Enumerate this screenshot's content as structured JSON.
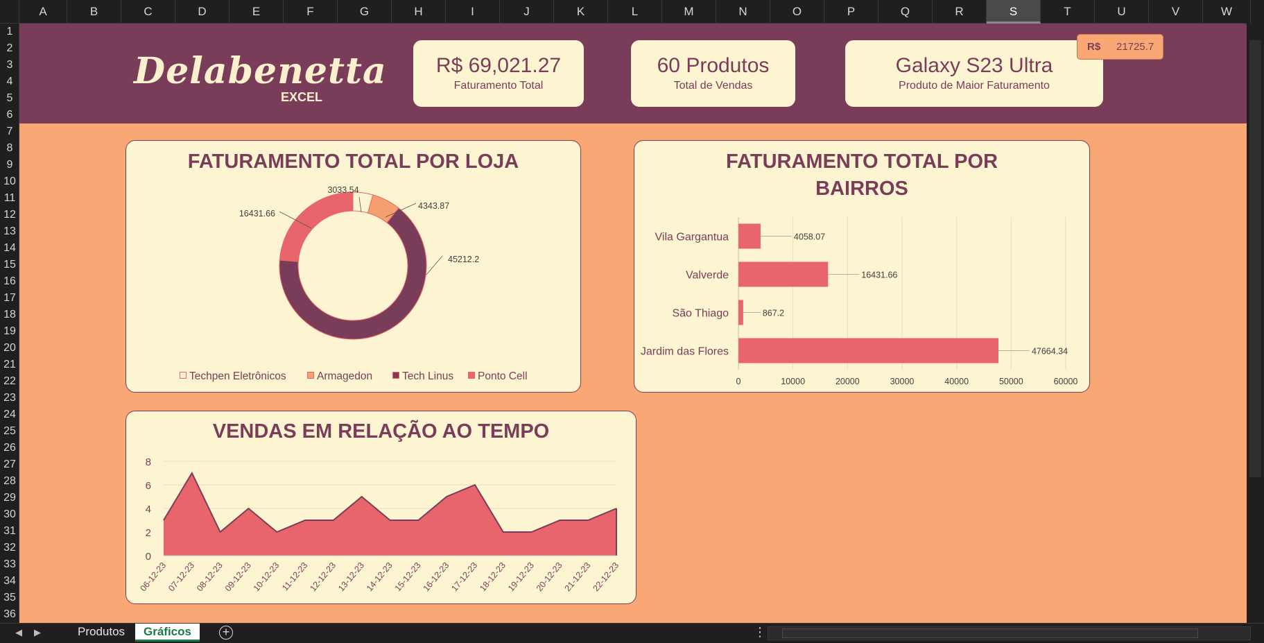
{
  "columns": [
    "A",
    "B",
    "C",
    "D",
    "E",
    "F",
    "G",
    "H",
    "I",
    "J",
    "K",
    "L",
    "M",
    "N",
    "O",
    "P",
    "Q",
    "R",
    "S",
    "T",
    "U",
    "V",
    "W"
  ],
  "selected_column": "S",
  "rows": [
    "1",
    "2",
    "3",
    "4",
    "5",
    "6",
    "7",
    "8",
    "9",
    "10",
    "11",
    "12",
    "13",
    "14",
    "15",
    "16",
    "17",
    "18",
    "19",
    "20",
    "21",
    "22",
    "23",
    "24",
    "25",
    "26",
    "27",
    "28",
    "29",
    "30",
    "31",
    "32",
    "33",
    "34",
    "35",
    "36"
  ],
  "logo": {
    "title": "Delabenetta",
    "subtitle": "EXCEL"
  },
  "kpis": [
    {
      "value": "R$ 69,021.27",
      "label": "Faturamento Total"
    },
    {
      "value": "60 Produtos",
      "label": "Total de Vendas"
    },
    {
      "value": "Galaxy S23 Ultra",
      "label": "Produto de Maior Faturamento"
    }
  ],
  "top_value": {
    "label": "R$",
    "value": "21725.7"
  },
  "colors": {
    "banner": "#7a3d59",
    "background": "#f9a775",
    "card": "#fdf4d1",
    "accent": "#e8656c",
    "orange": "#f5a070"
  },
  "chart_data": [
    {
      "type": "pie",
      "donut": true,
      "title": "FATURAMENTO TOTAL POR LOJA",
      "categories": [
        "Techpen Eletrônicos",
        "Armagedon",
        "Tech Linus",
        "Ponto Cell"
      ],
      "values": [
        3033.54,
        4343.87,
        45212.2,
        16431.66
      ],
      "data_labels": [
        "3033.54",
        "4343.87",
        "45212.2",
        "16431.66"
      ],
      "colors": [
        "#fdf4d1",
        "#f5a070",
        "#7a3d59",
        "#e8656c"
      ],
      "legend": "bottom"
    },
    {
      "type": "bar",
      "orientation": "horizontal",
      "title": "FATURAMENTO TOTAL POR BAIRROS",
      "title_lines": [
        "FATURAMENTO TOTAL POR",
        "BAIRROS"
      ],
      "categories": [
        "Vila Gargantua",
        "Valverde",
        "São Thiago",
        "Jardim das Flores"
      ],
      "values": [
        4058.07,
        16431.66,
        867.2,
        47664.34
      ],
      "data_labels": [
        "4058.07",
        "16431.66",
        "867.2",
        "47664.34"
      ],
      "xlim": [
        0,
        60000
      ],
      "xticks": [
        "0",
        "10000",
        "20000",
        "30000",
        "40000",
        "50000",
        "60000"
      ],
      "grid": true,
      "color": "#e8656c"
    },
    {
      "type": "area",
      "title": "VENDAS EM RELAÇÃO AO TEMPO",
      "x": [
        "06-12-23",
        "07-12-23",
        "08-12-23",
        "09-12-23",
        "10-12-23",
        "11-12-23",
        "12-12-23",
        "13-12-23",
        "14-12-23",
        "15-12-23",
        "16-12-23",
        "17-12-23",
        "18-12-23",
        "19-12-23",
        "20-12-23",
        "21-12-23",
        "22-12-23"
      ],
      "values": [
        3,
        7,
        2,
        4,
        2,
        3,
        3,
        5,
        3,
        3,
        5,
        6,
        2,
        2,
        3,
        3,
        4
      ],
      "ylim": [
        0,
        8
      ],
      "yticks": [
        "0",
        "2",
        "4",
        "6",
        "8"
      ],
      "grid": true,
      "color": "#e8656c"
    }
  ],
  "sheet_tabs": [
    {
      "label": "Produtos",
      "active": false
    },
    {
      "label": "Gráficos",
      "active": true
    }
  ],
  "tab_controls": {
    "add": "+",
    "more": "⋮",
    "prev": "◀",
    "next": "▶"
  }
}
